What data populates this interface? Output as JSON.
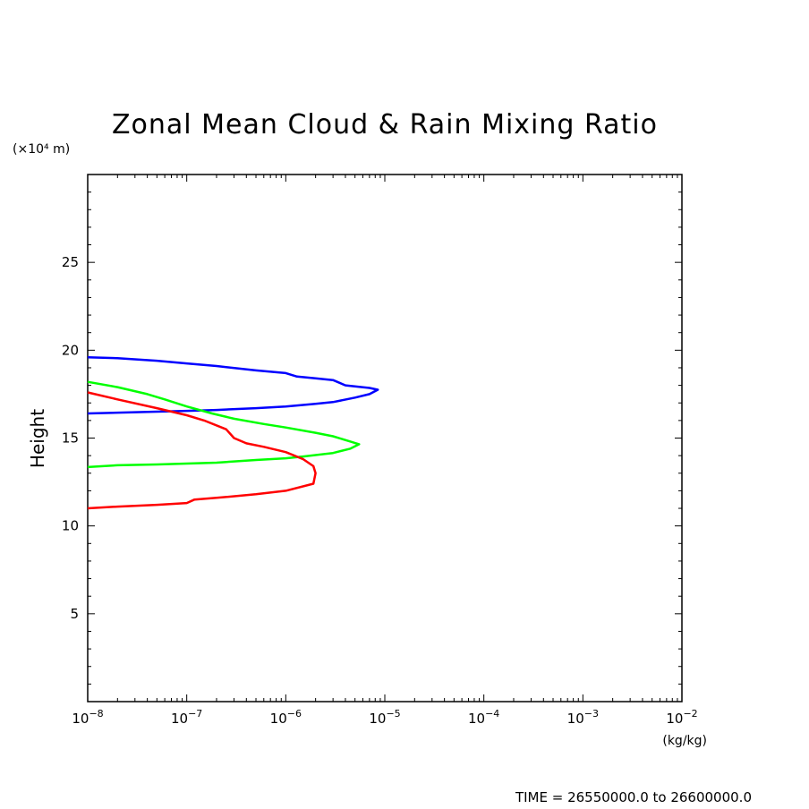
{
  "chart_data": {
    "type": "line",
    "title": "Zonal Mean Cloud & Rain Mixing Ratio",
    "ylabel": "Height",
    "y_unit": "(×10⁴ m)",
    "x_unit": "(kg/kg)",
    "x_scale": "log",
    "xlim": [
      1e-08,
      0.01
    ],
    "ylim": [
      0,
      30
    ],
    "x_ticks": [
      {
        "value": 1e-08,
        "mant": "10",
        "exp": "−8"
      },
      {
        "value": 1e-07,
        "mant": "10",
        "exp": "−7"
      },
      {
        "value": 1e-06,
        "mant": "10",
        "exp": "−6"
      },
      {
        "value": 1e-05,
        "mant": "10",
        "exp": "−5"
      },
      {
        "value": 0.0001,
        "mant": "10",
        "exp": "−4"
      },
      {
        "value": 0.001,
        "mant": "10",
        "exp": "−3"
      },
      {
        "value": 0.01,
        "mant": "10",
        "exp": "−2"
      }
    ],
    "y_ticks": [
      5,
      10,
      15,
      20,
      25
    ],
    "y_tick_labels": [
      "5",
      "10",
      "15",
      "20",
      "25"
    ],
    "grid": false,
    "series": [
      {
        "color": "#0000ff",
        "points": [
          [
            1e-08,
            19.6
          ],
          [
            2e-08,
            19.55
          ],
          [
            5e-08,
            19.4
          ],
          [
            1e-07,
            19.25
          ],
          [
            2e-07,
            19.1
          ],
          [
            5e-07,
            18.85
          ],
          [
            1e-06,
            18.7
          ],
          [
            1.3e-06,
            18.5
          ],
          [
            2e-06,
            18.4
          ],
          [
            3e-06,
            18.3
          ],
          [
            4e-06,
            18.0
          ],
          [
            7e-06,
            17.85
          ],
          [
            8.5e-06,
            17.75
          ],
          [
            7e-06,
            17.5
          ],
          [
            5e-06,
            17.3
          ],
          [
            3e-06,
            17.05
          ],
          [
            2e-06,
            16.95
          ],
          [
            1e-06,
            16.8
          ],
          [
            5e-07,
            16.7
          ],
          [
            2e-07,
            16.6
          ],
          [
            1e-07,
            16.55
          ],
          [
            5e-08,
            16.5
          ],
          [
            1e-08,
            16.4
          ]
        ]
      },
      {
        "color": "#00ff00",
        "points": [
          [
            1e-08,
            18.2
          ],
          [
            2e-08,
            17.9
          ],
          [
            4e-08,
            17.5
          ],
          [
            6e-08,
            17.2
          ],
          [
            1e-07,
            16.8
          ],
          [
            1.8e-07,
            16.4
          ],
          [
            3e-07,
            16.1
          ],
          [
            6e-07,
            15.8
          ],
          [
            1e-06,
            15.6
          ],
          [
            2e-06,
            15.3
          ],
          [
            3e-06,
            15.1
          ],
          [
            4.5e-06,
            14.8
          ],
          [
            5.5e-06,
            14.65
          ],
          [
            4.5e-06,
            14.4
          ],
          [
            3e-06,
            14.15
          ],
          [
            1.5e-06,
            13.95
          ],
          [
            1e-06,
            13.85
          ],
          [
            5e-07,
            13.75
          ],
          [
            2e-07,
            13.6
          ],
          [
            1e-07,
            13.55
          ],
          [
            5e-08,
            13.5
          ],
          [
            2e-08,
            13.45
          ],
          [
            1e-08,
            13.35
          ]
        ]
      },
      {
        "color": "#ff0000",
        "points": [
          [
            1e-08,
            17.6
          ],
          [
            2e-08,
            17.2
          ],
          [
            5e-08,
            16.7
          ],
          [
            1e-07,
            16.3
          ],
          [
            1.5e-07,
            16.0
          ],
          [
            2.5e-07,
            15.5
          ],
          [
            3e-07,
            15.0
          ],
          [
            4e-07,
            14.7
          ],
          [
            6e-07,
            14.5
          ],
          [
            1e-06,
            14.2
          ],
          [
            1.5e-06,
            13.8
          ],
          [
            1.9e-06,
            13.4
          ],
          [
            2e-06,
            13.0
          ],
          [
            1.9e-06,
            12.4
          ],
          [
            1e-06,
            12.0
          ],
          [
            5e-07,
            11.8
          ],
          [
            2e-07,
            11.6
          ],
          [
            1.2e-07,
            11.5
          ],
          [
            1e-07,
            11.3
          ],
          [
            5e-08,
            11.2
          ],
          [
            2e-08,
            11.1
          ],
          [
            1e-08,
            11.0
          ]
        ]
      }
    ]
  },
  "footer": {
    "time_label": "TIME = 26550000.0 to 26600000.0"
  }
}
